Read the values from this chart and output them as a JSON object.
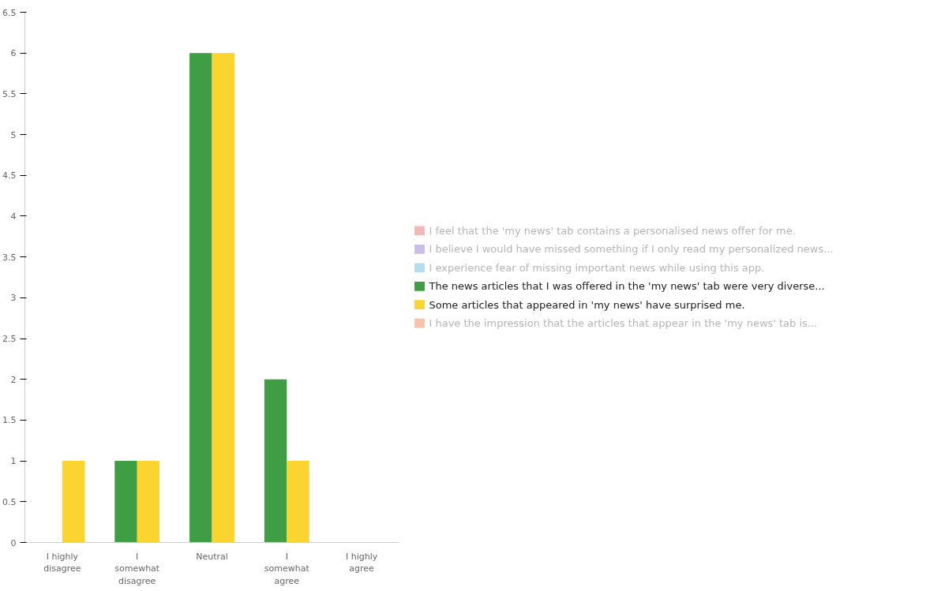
{
  "chart_data": {
    "type": "bar",
    "categories": [
      "I highly disagree",
      "I somewhat disagree",
      "Neutral",
      "I somewhat agree",
      "I highly agree"
    ],
    "series": [
      {
        "name": "I feel that the 'my news' tab contains a personalised news offer for me.",
        "color": "#f4b8b8",
        "values": [
          null,
          null,
          null,
          null,
          null
        ]
      },
      {
        "name": "I believe I would have missed something if I only read my personalized news...",
        "color": "#c9bfe8",
        "values": [
          null,
          null,
          null,
          null,
          null
        ]
      },
      {
        "name": "I experience fear of missing important news while using this app.",
        "color": "#b3def0",
        "values": [
          null,
          null,
          null,
          null,
          null
        ]
      },
      {
        "name": "The news articles that I was offered in the 'my news' tab were very diverse...",
        "color": "#3f9e44",
        "values": [
          0,
          1,
          6,
          2,
          0
        ]
      },
      {
        "name": "Some articles that appeared in 'my news' have surprised me.",
        "color": "#fbd42f",
        "values": [
          1,
          1,
          6,
          1,
          0
        ]
      },
      {
        "name": "I have the impression that the articles that appear in the 'my news' tab is...",
        "color": "#f8c3ad",
        "values": [
          null,
          null,
          null,
          null,
          null
        ]
      }
    ],
    "ylim": [
      0,
      6.5
    ],
    "yticks": [
      0,
      0.5,
      1,
      1.5,
      2,
      2.5,
      3,
      3.5,
      4,
      4.5,
      5,
      5.5,
      6,
      6.5
    ],
    "grid": false,
    "legend": "right"
  }
}
